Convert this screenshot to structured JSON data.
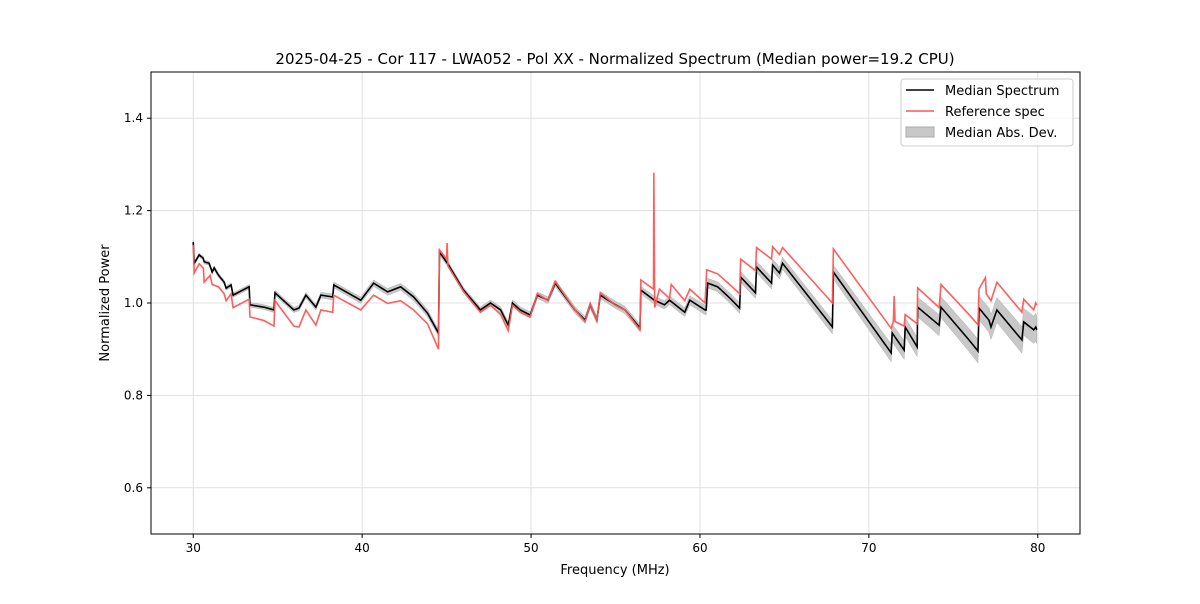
{
  "chart_data": {
    "type": "line",
    "title": "2025-04-25 - Cor 117 - LWA052 - Pol XX - Normalized Spectrum (Median power=19.2 CPU)",
    "xlabel": "Frequency (MHz)",
    "ylabel": "Normalized Power",
    "xlim": [
      27.5,
      82.5
    ],
    "ylim": [
      0.5,
      1.5
    ],
    "xticks": [
      30,
      40,
      50,
      60,
      70,
      80
    ],
    "yticks": [
      0.6,
      0.8,
      1.0,
      1.2,
      1.4
    ],
    "xtick_labels": [
      "30",
      "40",
      "50",
      "60",
      "70",
      "80"
    ],
    "ytick_labels": [
      "0.6",
      "0.8",
      "1.0",
      "1.2",
      "1.4"
    ],
    "grid": true,
    "legend_position": "top-right",
    "legend": [
      "Median Spectrum",
      "Reference spec",
      "Median Abs. Dev."
    ],
    "colors": {
      "median": "#000000",
      "reference": "#ff5555",
      "mad": "#c8c8c8"
    },
    "series": [
      {
        "name": "Median Spectrum",
        "x": [
          30.0,
          30.06,
          30.35,
          30.59,
          30.65,
          30.94,
          31.12,
          31.24,
          31.48,
          31.83,
          31.95,
          32.24,
          32.36,
          33.31,
          33.36,
          34.19,
          34.78,
          34.84,
          35.96,
          36.26,
          36.67,
          37.26,
          37.56,
          38.26,
          38.32,
          39.92,
          40.68,
          41.51,
          42.28,
          43.05,
          43.87,
          44.52,
          44.58,
          45.05,
          46.0,
          47.0,
          47.6,
          48.2,
          48.65,
          48.9,
          49.36,
          49.95,
          50.37,
          51.0,
          51.43,
          52.6,
          53.2,
          53.5,
          53.9,
          54.1,
          55.0,
          55.56,
          56.45,
          56.5,
          57.3,
          57.9,
          58.2,
          59.1,
          59.4,
          60.3,
          60.37,
          60.46,
          61.05,
          61.76,
          62.35,
          62.41,
          63.29,
          63.35,
          64.24,
          64.3,
          64.71,
          64.89,
          67.84,
          67.9,
          71.32,
          71.38,
          72.09,
          72.15,
          72.86,
          72.89,
          74.16,
          74.27,
          75.93,
          76.46,
          76.52,
          77.11,
          77.23,
          77.58,
          79.06,
          79.17,
          79.76,
          79.88,
          79.94
        ],
        "y": [
          1.132,
          1.086,
          1.104,
          1.097,
          1.089,
          1.086,
          1.067,
          1.076,
          1.061,
          1.045,
          1.032,
          1.039,
          1.017,
          1.035,
          0.996,
          0.991,
          0.985,
          1.022,
          0.985,
          0.989,
          1.017,
          0.991,
          1.017,
          1.013,
          1.039,
          1.006,
          1.043,
          1.024,
          1.035,
          1.013,
          0.978,
          0.935,
          1.11,
          1.086,
          1.028,
          0.985,
          1.0,
          0.985,
          0.952,
          1.0,
          0.985,
          0.974,
          1.017,
          1.006,
          1.043,
          0.985,
          0.963,
          0.996,
          0.963,
          1.017,
          0.996,
          0.985,
          0.946,
          1.028,
          1.006,
          0.996,
          1.006,
          0.98,
          1.006,
          0.985,
          0.985,
          1.043,
          1.035,
          1.011,
          0.989,
          1.056,
          1.022,
          1.078,
          1.043,
          1.082,
          1.065,
          1.086,
          0.948,
          1.067,
          0.892,
          0.935,
          0.898,
          0.948,
          0.905,
          0.991,
          0.952,
          0.991,
          0.92,
          0.896,
          0.989,
          0.963,
          0.948,
          0.985,
          0.92,
          0.959,
          0.942,
          0.948,
          0.942
        ]
      },
      {
        "name": "Reference spec",
        "x": [
          30.0,
          30.06,
          30.35,
          30.6,
          30.65,
          31.0,
          31.12,
          31.5,
          31.83,
          31.95,
          32.24,
          32.36,
          33.31,
          33.36,
          34.19,
          34.78,
          34.84,
          35.96,
          36.26,
          36.67,
          37.26,
          37.56,
          38.26,
          38.32,
          39.92,
          40.68,
          41.51,
          42.28,
          43.05,
          43.87,
          44.52,
          44.58,
          45.0,
          45.03,
          45.08,
          46.0,
          47.0,
          47.6,
          48.2,
          48.65,
          48.9,
          49.36,
          49.95,
          50.37,
          51.0,
          51.43,
          52.6,
          53.2,
          53.5,
          53.9,
          54.1,
          55.0,
          55.56,
          56.45,
          56.5,
          57.25,
          57.27,
          57.32,
          57.6,
          58.2,
          58.3,
          59.1,
          59.4,
          60.3,
          60.4,
          61.05,
          61.76,
          62.35,
          62.41,
          63.29,
          63.35,
          64.24,
          64.3,
          64.71,
          64.89,
          67.84,
          67.9,
          71.32,
          71.45,
          71.5,
          71.55,
          72.09,
          72.15,
          72.86,
          72.89,
          74.16,
          74.27,
          75.93,
          76.46,
          76.52,
          76.9,
          76.95,
          77.23,
          77.58,
          79.06,
          79.17,
          79.76,
          79.88,
          79.94
        ],
        "y": [
          1.125,
          1.065,
          1.085,
          1.075,
          1.045,
          1.06,
          1.04,
          1.035,
          1.02,
          1.005,
          1.02,
          0.99,
          1.008,
          0.97,
          0.962,
          0.95,
          1.005,
          0.95,
          0.948,
          0.985,
          0.952,
          0.985,
          0.98,
          1.017,
          0.985,
          1.017,
          0.999,
          1.005,
          0.985,
          0.955,
          0.9,
          1.115,
          1.095,
          1.13,
          1.08,
          1.025,
          0.98,
          0.995,
          0.975,
          0.94,
          0.995,
          0.98,
          0.97,
          1.02,
          1.005,
          1.047,
          0.985,
          0.96,
          0.998,
          0.962,
          1.022,
          0.995,
          0.985,
          0.942,
          1.05,
          1.03,
          1.282,
          0.99,
          1.03,
          1.01,
          1.04,
          1.005,
          1.03,
          1.0,
          1.072,
          1.063,
          1.04,
          1.02,
          1.095,
          1.07,
          1.12,
          1.095,
          1.122,
          1.105,
          1.12,
          1.0,
          1.117,
          0.945,
          0.96,
          1.015,
          0.96,
          0.95,
          0.975,
          0.955,
          1.033,
          0.99,
          1.04,
          0.975,
          0.953,
          1.03,
          1.055,
          1.02,
          1.005,
          1.045,
          0.98,
          1.008,
          0.985,
          1.0,
          0.995
        ]
      }
    ],
    "mad_halfwidth": {
      "x": [
        30,
        44,
        45,
        56,
        60,
        68,
        80
      ],
      "y": [
        0.004,
        0.008,
        0.006,
        0.008,
        0.01,
        0.015,
        0.03
      ]
    }
  }
}
